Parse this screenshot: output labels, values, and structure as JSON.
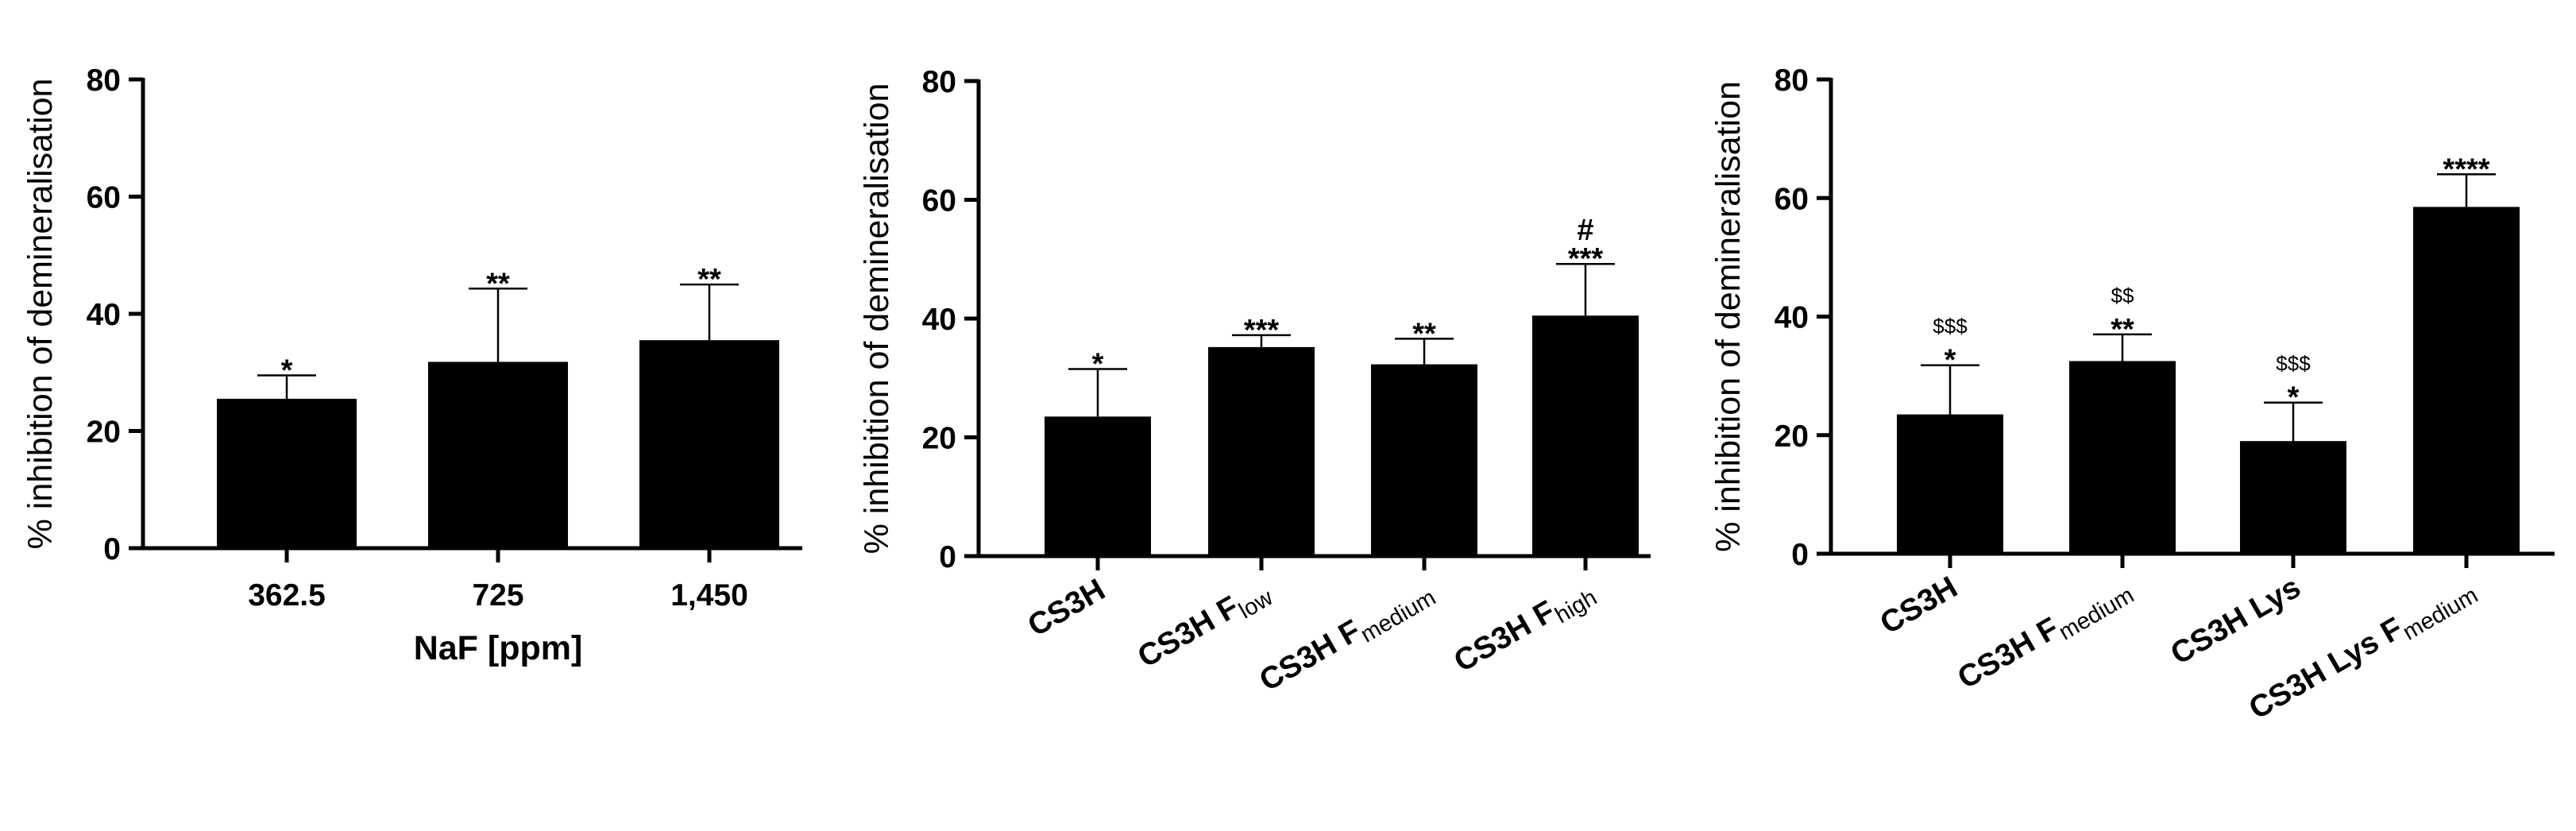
{
  "chart_data": [
    {
      "type": "bar",
      "ylabel": "% inhibition of demineralisation",
      "xlabel": "NaF [ppm]",
      "ylim": [
        0,
        80
      ],
      "yticks": [
        0,
        20,
        40,
        60,
        80
      ],
      "categories": [
        {
          "main": "362.5",
          "sub": ""
        },
        {
          "main": "725",
          "sub": ""
        },
        {
          "main": "1,450",
          "sub": ""
        }
      ],
      "values": [
        25.5,
        31.8,
        35.5
      ],
      "errors": [
        4.0,
        12.5,
        9.5
      ],
      "significance": [
        {
          "stars": "*",
          "extra": "",
          "dollars": ""
        },
        {
          "stars": "**",
          "extra": "",
          "dollars": ""
        },
        {
          "stars": "**",
          "extra": "",
          "dollars": ""
        }
      ]
    },
    {
      "type": "bar",
      "ylabel": "% inhibition of demineralisation",
      "xlabel": "",
      "ylim": [
        0,
        80
      ],
      "yticks": [
        0,
        20,
        40,
        60,
        80
      ],
      "categories": [
        {
          "main": "CS3H",
          "sub": ""
        },
        {
          "main": "CS3H F",
          "sub": "low"
        },
        {
          "main": "CS3H F",
          "sub": "medium"
        },
        {
          "main": "CS3H F",
          "sub": "high"
        }
      ],
      "values": [
        23.5,
        35.2,
        32.3,
        40.5
      ],
      "errors": [
        8.0,
        2.0,
        4.3,
        8.7
      ],
      "significance": [
        {
          "stars": "*",
          "extra": "",
          "dollars": ""
        },
        {
          "stars": "***",
          "extra": "",
          "dollars": ""
        },
        {
          "stars": "**",
          "extra": "",
          "dollars": ""
        },
        {
          "stars": "***",
          "extra": "#",
          "dollars": ""
        }
      ]
    },
    {
      "type": "bar",
      "ylabel": "% inhibition of demineralisation",
      "xlabel": "",
      "ylim": [
        0,
        80
      ],
      "yticks": [
        0,
        20,
        40,
        60,
        80
      ],
      "categories": [
        {
          "main": "CS3H",
          "sub": ""
        },
        {
          "main": "CS3H F",
          "sub": "medium"
        },
        {
          "main": "CS3H Lys",
          "sub": ""
        },
        {
          "main": "CS3H Lys F",
          "sub": "medium"
        }
      ],
      "values": [
        23.5,
        32.5,
        19.0,
        58.5
      ],
      "errors": [
        8.3,
        4.5,
        6.5,
        5.5
      ],
      "significance": [
        {
          "stars": "*",
          "extra": "",
          "dollars": "$$$"
        },
        {
          "stars": "**",
          "extra": "",
          "dollars": "$$"
        },
        {
          "stars": "*",
          "extra": "",
          "dollars": "$$$"
        },
        {
          "stars": "****",
          "extra": "",
          "dollars": ""
        }
      ]
    }
  ]
}
